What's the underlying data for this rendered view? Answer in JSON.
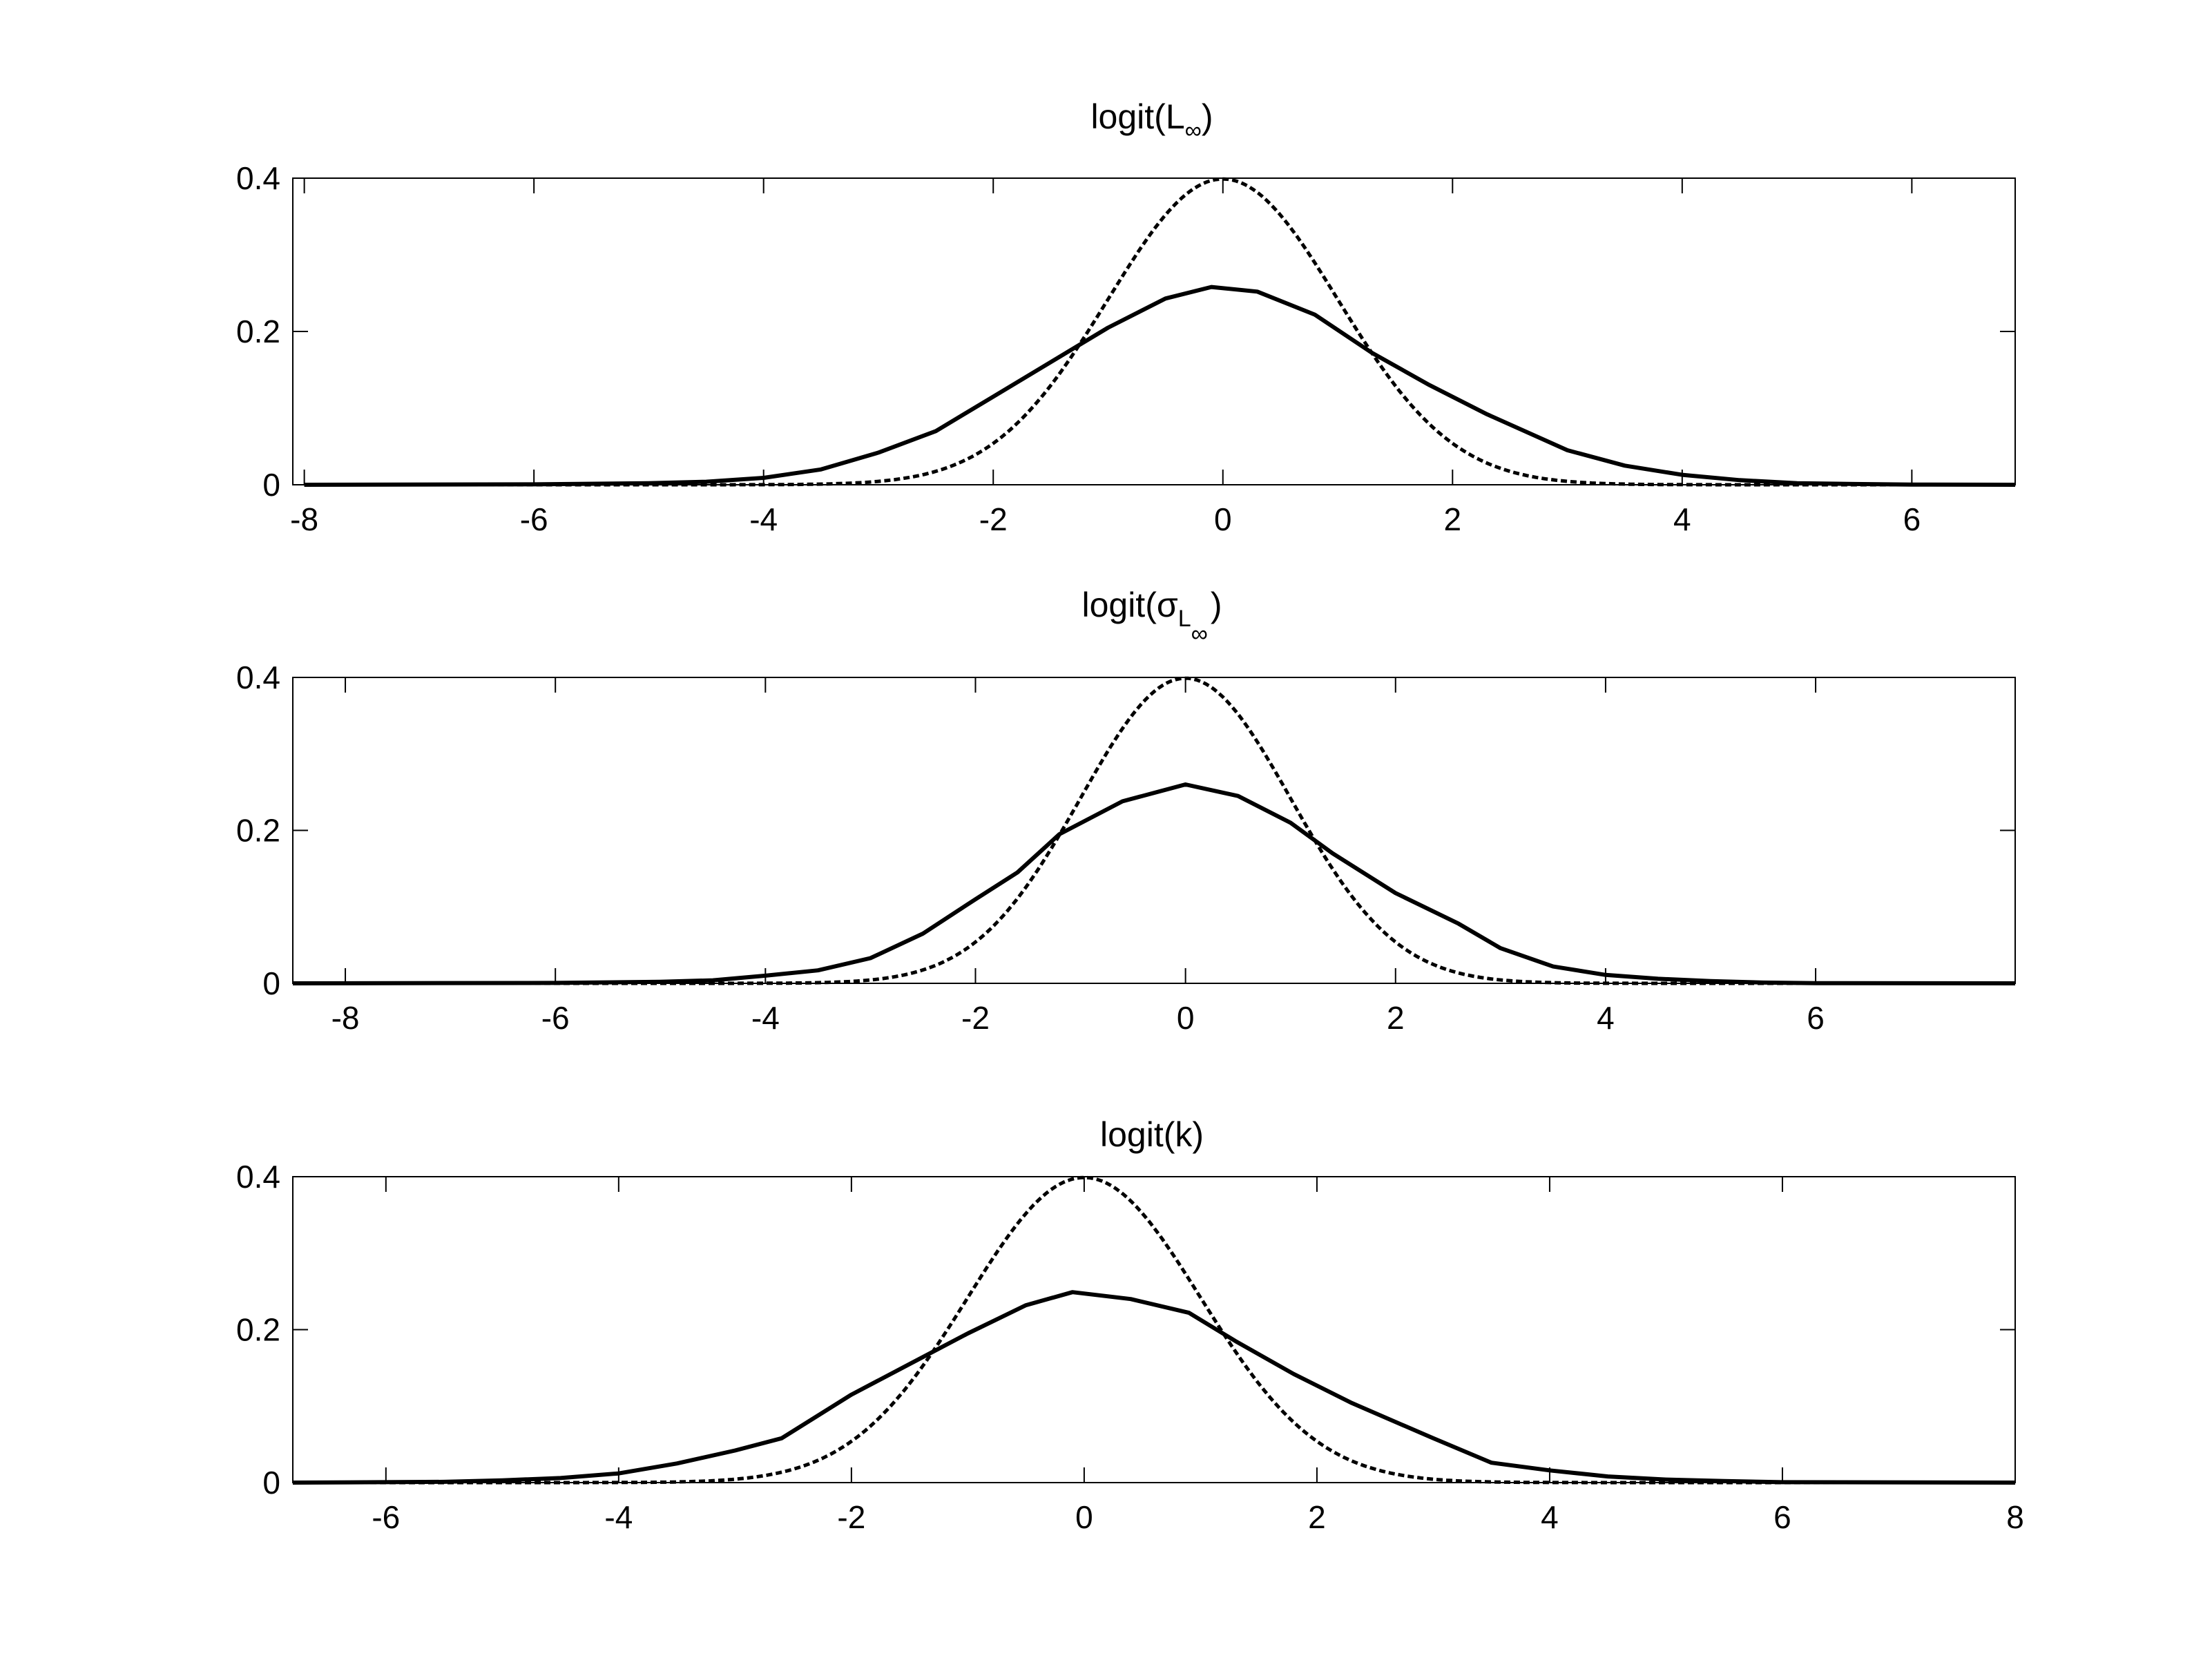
{
  "figure": {
    "background": "#ffffff",
    "line_color": "#000000"
  },
  "chart_data": [
    {
      "type": "line",
      "title": "logit(L∞)",
      "title_parts": {
        "prefix": "logit(L",
        "subscript": "∞",
        "suffix": ")"
      },
      "xlabel": "",
      "ylabel": "",
      "xlim": [
        -8.1,
        6.9
      ],
      "ylim": [
        0,
        0.4
      ],
      "xticks": [
        -8,
        -6,
        -4,
        -2,
        0,
        2,
        4,
        6
      ],
      "xtick_labels": [
        "-8",
        "-6",
        "-4",
        "-2",
        "0",
        "2",
        "4",
        "6"
      ],
      "yticks": [
        0,
        0.2,
        0.4
      ],
      "ytick_labels": [
        "0",
        "0.2",
        "0.4"
      ],
      "grid": false,
      "series": [
        {
          "style": "solid",
          "x": [
            -8.0,
            -6.0,
            -5.0,
            -4.5,
            -4.0,
            -3.5,
            -3.0,
            -2.5,
            -2.0,
            -1.5,
            -1.0,
            -0.5,
            -0.1,
            0.3,
            0.8,
            1.3,
            1.8,
            2.3,
            3.0,
            3.5,
            4.0,
            4.5,
            5.0,
            5.5,
            6.0,
            6.9
          ],
          "y": [
            0.0,
            0.0005,
            0.002,
            0.004,
            0.009,
            0.02,
            0.042,
            0.07,
            0.115,
            0.16,
            0.205,
            0.243,
            0.258,
            0.252,
            0.222,
            0.172,
            0.13,
            0.092,
            0.045,
            0.025,
            0.013,
            0.006,
            0.002,
            0.001,
            0.0003,
            0.0
          ]
        },
        {
          "style": "dashed",
          "function": "standard_normal_pdf",
          "x_range": [
            -8.0,
            6.9
          ]
        }
      ]
    },
    {
      "type": "line",
      "title": "logit(σL∞)",
      "title_parts": {
        "prefix": "logit(",
        "sigma": "σ",
        "subscript": "L",
        "subsubscript": "∞",
        "suffix": ")"
      },
      "xlabel": "",
      "ylabel": "",
      "xlim": [
        -8.5,
        7.9
      ],
      "ylim": [
        0,
        0.4
      ],
      "xticks": [
        -8,
        -6,
        -4,
        -2,
        0,
        2,
        4,
        6
      ],
      "xtick_labels": [
        "-8",
        "-6",
        "-4",
        "-2",
        "0",
        "2",
        "4",
        "6"
      ],
      "yticks": [
        0,
        0.2,
        0.4
      ],
      "ytick_labels": [
        "0",
        "0.2",
        "0.4"
      ],
      "grid": false,
      "series": [
        {
          "style": "solid",
          "x": [
            -8.5,
            -6.0,
            -5.0,
            -4.5,
            -4.0,
            -3.5,
            -3.0,
            -2.5,
            -2.0,
            -1.6,
            -1.2,
            -0.6,
            0.0,
            0.5,
            1.0,
            1.4,
            2.0,
            2.6,
            3.0,
            3.5,
            4.0,
            4.5,
            5.0,
            5.5,
            6.0,
            7.9
          ],
          "y": [
            0.0,
            0.0005,
            0.002,
            0.004,
            0.01,
            0.017,
            0.033,
            0.065,
            0.11,
            0.145,
            0.195,
            0.238,
            0.26,
            0.245,
            0.21,
            0.17,
            0.118,
            0.078,
            0.046,
            0.022,
            0.011,
            0.006,
            0.003,
            0.001,
            0.0003,
            0.0
          ]
        },
        {
          "style": "dashed",
          "function": "standard_normal_pdf",
          "x_range": [
            -8.5,
            7.9
          ]
        }
      ]
    },
    {
      "type": "line",
      "title": "logit(k)",
      "title_parts": {
        "prefix": "logit(k)"
      },
      "xlabel": "",
      "ylabel": "",
      "xlim": [
        -6.8,
        8.0
      ],
      "ylim": [
        0,
        0.4
      ],
      "xticks": [
        -6,
        -4,
        -2,
        0,
        2,
        4,
        6,
        8
      ],
      "xtick_labels": [
        "-6",
        "-4",
        "-2",
        "0",
        "2",
        "4",
        "6",
        "8"
      ],
      "yticks": [
        0,
        0.2,
        0.4
      ],
      "ytick_labels": [
        "0",
        "0.2",
        "0.4"
      ],
      "grid": false,
      "series": [
        {
          "style": "solid",
          "x": [
            -6.8,
            -5.5,
            -5.0,
            -4.5,
            -4.0,
            -3.5,
            -3.0,
            -2.6,
            -2.0,
            -1.5,
            -1.0,
            -0.5,
            -0.1,
            0.4,
            0.9,
            1.3,
            1.8,
            2.3,
            3.0,
            3.5,
            4.0,
            4.5,
            5.0,
            5.5,
            6.0,
            8.0
          ],
          "y": [
            0.0,
            0.001,
            0.003,
            0.006,
            0.012,
            0.025,
            0.042,
            0.058,
            0.115,
            0.155,
            0.195,
            0.232,
            0.249,
            0.24,
            0.222,
            0.185,
            0.142,
            0.104,
            0.058,
            0.026,
            0.016,
            0.008,
            0.004,
            0.002,
            0.0005,
            0.0
          ]
        },
        {
          "style": "dashed",
          "function": "standard_normal_pdf",
          "x_range": [
            -6.8,
            8.0
          ]
        }
      ]
    }
  ]
}
